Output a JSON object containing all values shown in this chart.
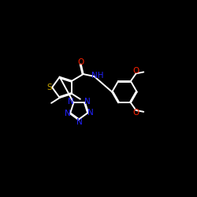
{
  "bg_color": "#000000",
  "bond_color": "#ffffff",
  "N_color": "#2222ff",
  "O_color": "#ff2200",
  "S_color": "#ccaa00",
  "lw": 1.4,
  "fs": 7.5,
  "xlim": [
    0,
    10
  ],
  "ylim": [
    0,
    10
  ]
}
